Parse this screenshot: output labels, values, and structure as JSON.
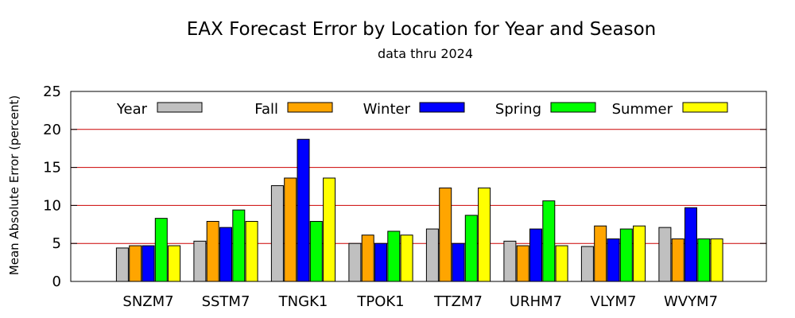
{
  "chart_data": {
    "type": "bar",
    "title": "EAX Forecast Error by Location for Year and Season",
    "subtitle": "data thru 2024",
    "xlabel": "",
    "ylabel": "Mean Absolute Error (percent)",
    "ylim": [
      0,
      25
    ],
    "yticks": [
      0,
      5,
      10,
      15,
      20,
      25
    ],
    "grid": true,
    "legend_position": "top",
    "categories": [
      "SNZM7",
      "SSTM7",
      "TNGK1",
      "TPOK1",
      "TTZM7",
      "URHM7",
      "VLYM7",
      "WVYM7"
    ],
    "series": [
      {
        "name": "Year",
        "color": "#c0c0c0",
        "values": [
          4.4,
          5.3,
          12.6,
          5.0,
          6.9,
          5.3,
          4.6,
          7.1
        ]
      },
      {
        "name": "Fall",
        "color": "#ffa500",
        "values": [
          4.7,
          7.9,
          13.6,
          6.1,
          12.3,
          4.7,
          7.3,
          5.6
        ]
      },
      {
        "name": "Winter",
        "color": "#0000ff",
        "values": [
          4.7,
          7.1,
          18.7,
          5.0,
          5.0,
          6.9,
          5.6,
          9.7
        ]
      },
      {
        "name": "Spring",
        "color": "#00ff00",
        "values": [
          8.3,
          9.4,
          7.9,
          6.6,
          8.7,
          10.6,
          6.9,
          5.6
        ]
      },
      {
        "name": "Summer",
        "color": "#ffff00",
        "values": [
          4.7,
          7.9,
          13.6,
          6.1,
          12.3,
          4.7,
          7.3,
          5.6
        ]
      }
    ],
    "gridline_color": "#cc0000"
  }
}
